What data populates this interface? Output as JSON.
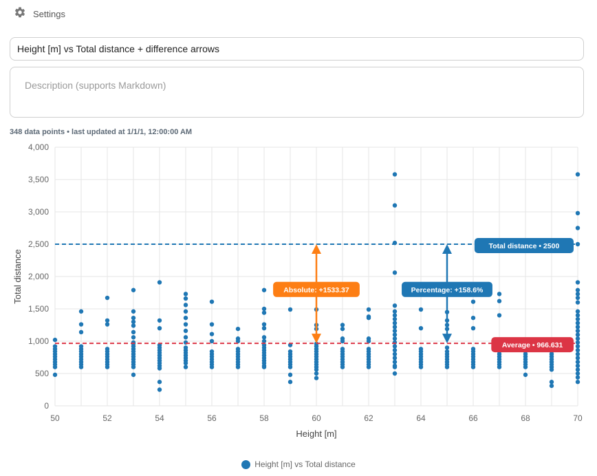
{
  "header": {
    "settings_label": "Settings",
    "settings_icon": "gear-icon"
  },
  "form": {
    "title_value": "Height [m] vs Total distance + difference arrows",
    "description_placeholder": "Description (supports Markdown)"
  },
  "meta": {
    "text": "348 data points • last updated at 1/1/1, 12:00:00 AM"
  },
  "colors": {
    "series": "#1f77b4",
    "average_line": "#dc3545",
    "total_line": "#1f77b4",
    "absolute_arrow": "#fd7e14",
    "percentage_arrow": "#1f77b4",
    "grid": "#e6e6e6"
  },
  "chart_data": {
    "type": "scatter",
    "xlabel": "Height [m]",
    "ylabel": "Total distance",
    "xlim": [
      50,
      70
    ],
    "ylim": [
      0,
      4000
    ],
    "x_ticks": [
      50,
      52,
      54,
      56,
      58,
      60,
      62,
      64,
      66,
      68,
      70
    ],
    "x_tick_labels": [
      "50",
      "52",
      "54",
      "56",
      "58",
      "60",
      "62",
      "64",
      "66",
      "68",
      "70"
    ],
    "y_ticks": [
      0,
      500,
      1000,
      1500,
      2000,
      2500,
      3000,
      3500,
      4000
    ],
    "y_tick_labels": [
      "0",
      "500",
      "1,000",
      "1,500",
      "2,000",
      "2,500",
      "3,000",
      "3,500",
      "4,000"
    ],
    "grid": true,
    "legend_position": "bottom-center",
    "series": [
      {
        "name": "Height [m] vs Total distance",
        "points": [
          [
            50,
            1020
          ],
          [
            50,
            920
          ],
          [
            50,
            880
          ],
          [
            50,
            840
          ],
          [
            50,
            800
          ],
          [
            50,
            760
          ],
          [
            50,
            720
          ],
          [
            50,
            680
          ],
          [
            50,
            640
          ],
          [
            50,
            600
          ],
          [
            50,
            480
          ],
          [
            51,
            1460
          ],
          [
            51,
            1260
          ],
          [
            51,
            1140
          ],
          [
            51,
            920
          ],
          [
            51,
            880
          ],
          [
            51,
            840
          ],
          [
            51,
            800
          ],
          [
            51,
            760
          ],
          [
            51,
            720
          ],
          [
            51,
            680
          ],
          [
            51,
            640
          ],
          [
            51,
            600
          ],
          [
            52,
            1670
          ],
          [
            52,
            1320
          ],
          [
            52,
            1260
          ],
          [
            52,
            880
          ],
          [
            52,
            840
          ],
          [
            52,
            800
          ],
          [
            52,
            760
          ],
          [
            52,
            720
          ],
          [
            52,
            680
          ],
          [
            52,
            640
          ],
          [
            52,
            600
          ],
          [
            53,
            1790
          ],
          [
            53,
            1460
          ],
          [
            53,
            1360
          ],
          [
            53,
            1300
          ],
          [
            53,
            1240
          ],
          [
            53,
            1140
          ],
          [
            53,
            1060
          ],
          [
            53,
            980
          ],
          [
            53,
            960
          ],
          [
            53,
            920
          ],
          [
            53,
            880
          ],
          [
            53,
            840
          ],
          [
            53,
            800
          ],
          [
            53,
            760
          ],
          [
            53,
            720
          ],
          [
            53,
            680
          ],
          [
            53,
            640
          ],
          [
            53,
            600
          ],
          [
            53,
            480
          ],
          [
            54,
            1910
          ],
          [
            54,
            1320
          ],
          [
            54,
            1200
          ],
          [
            54,
            940
          ],
          [
            54,
            900
          ],
          [
            54,
            860
          ],
          [
            54,
            820
          ],
          [
            54,
            780
          ],
          [
            54,
            740
          ],
          [
            54,
            700
          ],
          [
            54,
            660
          ],
          [
            54,
            620
          ],
          [
            54,
            580
          ],
          [
            54,
            370
          ],
          [
            54,
            250
          ],
          [
            55,
            1730
          ],
          [
            55,
            1660
          ],
          [
            55,
            1560
          ],
          [
            55,
            1460
          ],
          [
            55,
            1360
          ],
          [
            55,
            1260
          ],
          [
            55,
            1160
          ],
          [
            55,
            1060
          ],
          [
            55,
            980
          ],
          [
            55,
            900
          ],
          [
            55,
            860
          ],
          [
            55,
            820
          ],
          [
            55,
            780
          ],
          [
            55,
            740
          ],
          [
            55,
            700
          ],
          [
            55,
            660
          ],
          [
            55,
            600
          ],
          [
            56,
            1610
          ],
          [
            56,
            1260
          ],
          [
            56,
            1110
          ],
          [
            56,
            1000
          ],
          [
            56,
            840
          ],
          [
            56,
            800
          ],
          [
            56,
            760
          ],
          [
            56,
            720
          ],
          [
            56,
            680
          ],
          [
            56,
            640
          ],
          [
            56,
            600
          ],
          [
            57,
            1190
          ],
          [
            57,
            1040
          ],
          [
            57,
            1000
          ],
          [
            57,
            880
          ],
          [
            57,
            840
          ],
          [
            57,
            800
          ],
          [
            57,
            760
          ],
          [
            57,
            720
          ],
          [
            57,
            680
          ],
          [
            57,
            640
          ],
          [
            57,
            600
          ],
          [
            58,
            1790
          ],
          [
            58,
            1500
          ],
          [
            58,
            1440
          ],
          [
            58,
            1260
          ],
          [
            58,
            1200
          ],
          [
            58,
            1060
          ],
          [
            58,
            1000
          ],
          [
            58,
            940
          ],
          [
            58,
            900
          ],
          [
            58,
            860
          ],
          [
            58,
            820
          ],
          [
            58,
            780
          ],
          [
            58,
            740
          ],
          [
            58,
            700
          ],
          [
            58,
            660
          ],
          [
            58,
            620
          ],
          [
            58,
            600
          ],
          [
            59,
            1490
          ],
          [
            59,
            940
          ],
          [
            59,
            840
          ],
          [
            59,
            800
          ],
          [
            59,
            760
          ],
          [
            59,
            720
          ],
          [
            59,
            680
          ],
          [
            59,
            640
          ],
          [
            59,
            600
          ],
          [
            59,
            480
          ],
          [
            59,
            370
          ],
          [
            60,
            1490
          ],
          [
            60,
            1250
          ],
          [
            60,
            1190
          ],
          [
            60,
            960
          ],
          [
            60,
            920
          ],
          [
            60,
            880
          ],
          [
            60,
            840
          ],
          [
            60,
            800
          ],
          [
            60,
            760
          ],
          [
            60,
            720
          ],
          [
            60,
            680
          ],
          [
            60,
            640
          ],
          [
            60,
            600
          ],
          [
            60,
            560
          ],
          [
            60,
            500
          ],
          [
            60,
            430
          ],
          [
            61,
            1250
          ],
          [
            61,
            1190
          ],
          [
            61,
            1040
          ],
          [
            61,
            1000
          ],
          [
            61,
            880
          ],
          [
            61,
            840
          ],
          [
            61,
            800
          ],
          [
            61,
            760
          ],
          [
            61,
            720
          ],
          [
            61,
            680
          ],
          [
            61,
            640
          ],
          [
            61,
            600
          ],
          [
            62,
            1490
          ],
          [
            62,
            1380
          ],
          [
            62,
            1360
          ],
          [
            62,
            1040
          ],
          [
            62,
            1000
          ],
          [
            62,
            880
          ],
          [
            62,
            840
          ],
          [
            62,
            800
          ],
          [
            62,
            760
          ],
          [
            62,
            720
          ],
          [
            62,
            680
          ],
          [
            62,
            640
          ],
          [
            62,
            600
          ],
          [
            63,
            3580
          ],
          [
            63,
            3100
          ],
          [
            63,
            2520
          ],
          [
            63,
            2060
          ],
          [
            63,
            1550
          ],
          [
            63,
            1460
          ],
          [
            63,
            1400
          ],
          [
            63,
            1340
          ],
          [
            63,
            1280
          ],
          [
            63,
            1220
          ],
          [
            63,
            1160
          ],
          [
            63,
            1100
          ],
          [
            63,
            1040
          ],
          [
            63,
            980
          ],
          [
            63,
            920
          ],
          [
            63,
            860
          ],
          [
            63,
            800
          ],
          [
            63,
            740
          ],
          [
            63,
            680
          ],
          [
            63,
            620
          ],
          [
            63,
            600
          ],
          [
            63,
            500
          ],
          [
            64,
            1490
          ],
          [
            64,
            1200
          ],
          [
            64,
            880
          ],
          [
            64,
            840
          ],
          [
            64,
            800
          ],
          [
            64,
            760
          ],
          [
            64,
            720
          ],
          [
            64,
            680
          ],
          [
            64,
            640
          ],
          [
            64,
            600
          ],
          [
            65,
            1450
          ],
          [
            65,
            1320
          ],
          [
            65,
            1250
          ],
          [
            65,
            1190
          ],
          [
            65,
            900
          ],
          [
            65,
            840
          ],
          [
            65,
            800
          ],
          [
            65,
            760
          ],
          [
            65,
            720
          ],
          [
            65,
            680
          ],
          [
            65,
            640
          ],
          [
            65,
            600
          ],
          [
            66,
            1610
          ],
          [
            66,
            1360
          ],
          [
            66,
            1200
          ],
          [
            66,
            880
          ],
          [
            66,
            840
          ],
          [
            66,
            800
          ],
          [
            66,
            760
          ],
          [
            66,
            720
          ],
          [
            66,
            680
          ],
          [
            66,
            640
          ],
          [
            66,
            600
          ],
          [
            67,
            1730
          ],
          [
            67,
            1620
          ],
          [
            67,
            1400
          ],
          [
            67,
            880
          ],
          [
            67,
            840
          ],
          [
            67,
            800
          ],
          [
            67,
            760
          ],
          [
            67,
            720
          ],
          [
            67,
            680
          ],
          [
            67,
            640
          ],
          [
            67,
            600
          ],
          [
            68,
            1000
          ],
          [
            68,
            880
          ],
          [
            68,
            840
          ],
          [
            68,
            800
          ],
          [
            68,
            760
          ],
          [
            68,
            720
          ],
          [
            68,
            680
          ],
          [
            68,
            640
          ],
          [
            68,
            600
          ],
          [
            68,
            480
          ],
          [
            69,
            880
          ],
          [
            69,
            840
          ],
          [
            69,
            800
          ],
          [
            69,
            760
          ],
          [
            69,
            720
          ],
          [
            69,
            680
          ],
          [
            69,
            640
          ],
          [
            69,
            600
          ],
          [
            69,
            560
          ],
          [
            69,
            370
          ],
          [
            69,
            310
          ],
          [
            70,
            3580
          ],
          [
            70,
            2980
          ],
          [
            70,
            2750
          ],
          [
            70,
            2500
          ],
          [
            70,
            1910
          ],
          [
            70,
            1790
          ],
          [
            70,
            1730
          ],
          [
            70,
            1670
          ],
          [
            70,
            1600
          ],
          [
            70,
            1460
          ],
          [
            70,
            1400
          ],
          [
            70,
            1340
          ],
          [
            70,
            1280
          ],
          [
            70,
            1220
          ],
          [
            70,
            1160
          ],
          [
            70,
            1100
          ],
          [
            70,
            1040
          ],
          [
            70,
            980
          ],
          [
            70,
            920
          ],
          [
            70,
            860
          ],
          [
            70,
            800
          ],
          [
            70,
            740
          ],
          [
            70,
            680
          ],
          [
            70,
            620
          ],
          [
            70,
            560
          ],
          [
            70,
            500
          ],
          [
            70,
            440
          ],
          [
            70,
            370
          ]
        ]
      }
    ],
    "reference_lines": [
      {
        "value": 966.631,
        "label": "Average • 966.631",
        "style": "dashed",
        "color": "#dc3545"
      },
      {
        "value": 2500,
        "label": "Total distance • 2500",
        "style": "dashed",
        "color": "#1f77b4"
      }
    ],
    "difference_arrows": [
      {
        "x": 60,
        "from": 966.631,
        "to": 2500,
        "label": "Absolute: +1533.37",
        "color": "#fd7e14"
      },
      {
        "x": 65,
        "from": 966.631,
        "to": 2500,
        "label": "Percentage: +158.6%",
        "color": "#1f77b4"
      }
    ]
  }
}
